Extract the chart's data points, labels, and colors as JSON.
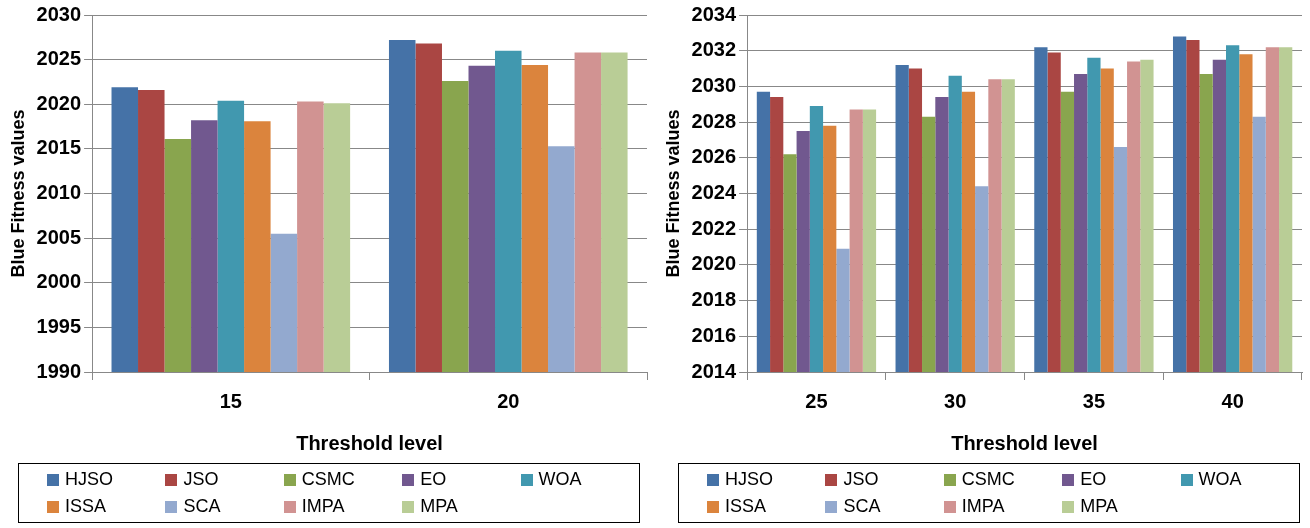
{
  "chart_data": [
    {
      "type": "bar",
      "xlabel": "Threshold level",
      "ylabel": "Blue Fitness values",
      "categories": [
        "15",
        "20"
      ],
      "ylim": [
        1990,
        2030
      ],
      "yticks": [
        1990,
        1995,
        2000,
        2005,
        2010,
        2015,
        2020,
        2025,
        2030
      ],
      "grid": "y",
      "legend": "bottom",
      "series": [
        {
          "name": "HJSO",
          "color": "#4572a7",
          "values": [
            2021.9,
            2027.2
          ]
        },
        {
          "name": "JSO",
          "color": "#aa4643",
          "values": [
            2021.6,
            2026.8
          ]
        },
        {
          "name": "CSMC",
          "color": "#89a54e",
          "values": [
            2016.1,
            2022.6
          ]
        },
        {
          "name": "EO",
          "color": "#71588f",
          "values": [
            2018.2,
            2024.3
          ]
        },
        {
          "name": "WOA",
          "color": "#4198af",
          "values": [
            2020.4,
            2026.0
          ]
        },
        {
          "name": "ISSA",
          "color": "#db843d",
          "values": [
            2018.1,
            2024.4
          ]
        },
        {
          "name": "SCA",
          "color": "#93a9cf",
          "values": [
            2005.5,
            2015.3
          ]
        },
        {
          "name": "IMPA",
          "color": "#d19392",
          "values": [
            2020.3,
            2025.8
          ]
        },
        {
          "name": "MPA",
          "color": "#b9cd96",
          "values": [
            2020.1,
            2025.8
          ]
        }
      ]
    },
    {
      "type": "bar",
      "xlabel": "Threshold level",
      "ylabel": "Blue Fitness values",
      "categories": [
        "25",
        "30",
        "35",
        "40"
      ],
      "ylim": [
        2014,
        2034
      ],
      "yticks": [
        2014,
        2016,
        2018,
        2020,
        2022,
        2024,
        2026,
        2028,
        2030,
        2032,
        2034
      ],
      "grid": "y",
      "legend": "bottom",
      "series": [
        {
          "name": "HJSO",
          "color": "#4572a7",
          "values": [
            2029.7,
            2031.2,
            2032.2,
            2032.8
          ]
        },
        {
          "name": "JSO",
          "color": "#aa4643",
          "values": [
            2029.4,
            2031.0,
            2031.9,
            2032.6
          ]
        },
        {
          "name": "CSMC",
          "color": "#89a54e",
          "values": [
            2026.2,
            2028.3,
            2029.7,
            2030.7
          ]
        },
        {
          "name": "EO",
          "color": "#71588f",
          "values": [
            2027.5,
            2029.4,
            2030.7,
            2031.5
          ]
        },
        {
          "name": "WOA",
          "color": "#4198af",
          "values": [
            2028.9,
            2030.6,
            2031.6,
            2032.3
          ]
        },
        {
          "name": "ISSA",
          "color": "#db843d",
          "values": [
            2027.8,
            2029.7,
            2031.0,
            2031.8
          ]
        },
        {
          "name": "SCA",
          "color": "#93a9cf",
          "values": [
            2020.9,
            2024.4,
            2026.6,
            2028.3
          ]
        },
        {
          "name": "IMPA",
          "color": "#d19392",
          "values": [
            2028.7,
            2030.4,
            2031.4,
            2032.2
          ]
        },
        {
          "name": "MPA",
          "color": "#b9cd96",
          "values": [
            2028.7,
            2030.4,
            2031.5,
            2032.2
          ]
        }
      ]
    }
  ]
}
